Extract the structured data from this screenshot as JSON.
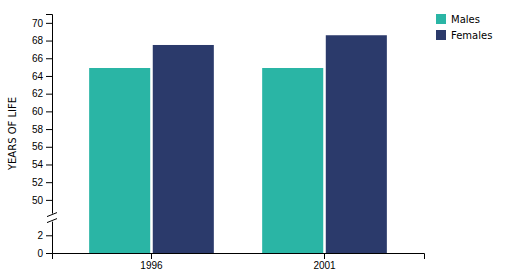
{
  "chart_data": {
    "type": "bar",
    "categories": [
      "1996",
      "2001"
    ],
    "series": [
      {
        "name": "Males",
        "color": "#2ab5a5",
        "values": [
          64.9,
          64.9
        ]
      },
      {
        "name": "Females",
        "color": "#2b3a6b",
        "values": [
          67.5,
          68.6
        ]
      }
    ],
    "ylabel": "YEARS OF LIFE",
    "ylim": [
      0,
      71
    ],
    "yticks": [
      0,
      2,
      50,
      52,
      54,
      56,
      58,
      60,
      62,
      64,
      66,
      68,
      70
    ],
    "grid": false,
    "legend": "upper right"
  }
}
